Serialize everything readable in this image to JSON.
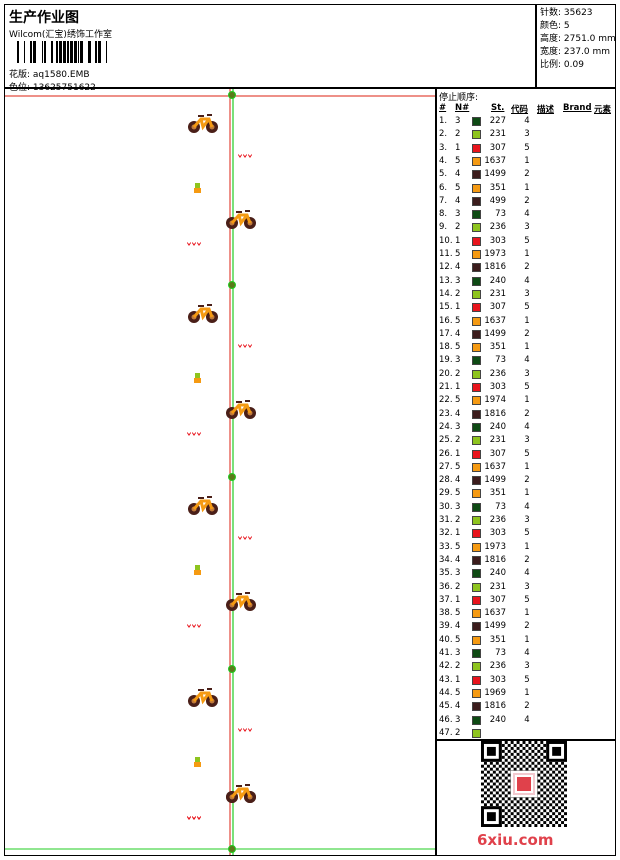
{
  "header": {
    "title": "生产作业图",
    "company": "Wilcom(汇宝)绣饰工作室",
    "pattern_label": "花版: aq1580.EMB",
    "color_label": "色位: 13625751622"
  },
  "specs": {
    "stitches": "针数: 35623",
    "colors": "颜色: 5",
    "height": "高度: 2751.0 mm",
    "width": "宽度: 237.0 mm",
    "scale": "比例: 0.09"
  },
  "stop_list": {
    "caption": "停止顺序:",
    "headers": {
      "index": "#",
      "needle": "N#",
      "stitches": "St.",
      "code": "代码",
      "desc": "描述",
      "brand": "Brand",
      "element": "元素"
    },
    "colors": {
      "1": "#e8141c",
      "2": "#8ec41e",
      "3": "#0e4a14",
      "4": "#3b1c1c",
      "5": "#f59a12"
    },
    "rows": [
      {
        "i": "1.",
        "n": "3",
        "st": "227",
        "c": "4"
      },
      {
        "i": "2.",
        "n": "2",
        "st": "231",
        "c": "3"
      },
      {
        "i": "3.",
        "n": "1",
        "st": "307",
        "c": "5"
      },
      {
        "i": "4.",
        "n": "5",
        "st": "1637",
        "c": "1"
      },
      {
        "i": "5.",
        "n": "4",
        "st": "1499",
        "c": "2"
      },
      {
        "i": "6.",
        "n": "5",
        "st": "351",
        "c": "1"
      },
      {
        "i": "7.",
        "n": "4",
        "st": "499",
        "c": "2"
      },
      {
        "i": "8.",
        "n": "3",
        "st": "73",
        "c": "4"
      },
      {
        "i": "9.",
        "n": "2",
        "st": "236",
        "c": "3"
      },
      {
        "i": "10.",
        "n": "1",
        "st": "303",
        "c": "5"
      },
      {
        "i": "11.",
        "n": "5",
        "st": "1973",
        "c": "1"
      },
      {
        "i": "12.",
        "n": "4",
        "st": "1816",
        "c": "2"
      },
      {
        "i": "13.",
        "n": "3",
        "st": "240",
        "c": "4"
      },
      {
        "i": "14.",
        "n": "2",
        "st": "231",
        "c": "3"
      },
      {
        "i": "15.",
        "n": "1",
        "st": "307",
        "c": "5"
      },
      {
        "i": "16.",
        "n": "5",
        "st": "1637",
        "c": "1"
      },
      {
        "i": "17.",
        "n": "4",
        "st": "1499",
        "c": "2"
      },
      {
        "i": "18.",
        "n": "5",
        "st": "351",
        "c": "1"
      },
      {
        "i": "19.",
        "n": "3",
        "st": "73",
        "c": "4"
      },
      {
        "i": "20.",
        "n": "2",
        "st": "236",
        "c": "3"
      },
      {
        "i": "21.",
        "n": "1",
        "st": "303",
        "c": "5"
      },
      {
        "i": "22.",
        "n": "5",
        "st": "1974",
        "c": "1"
      },
      {
        "i": "23.",
        "n": "4",
        "st": "1816",
        "c": "2"
      },
      {
        "i": "24.",
        "n": "3",
        "st": "240",
        "c": "4"
      },
      {
        "i": "25.",
        "n": "2",
        "st": "231",
        "c": "3"
      },
      {
        "i": "26.",
        "n": "1",
        "st": "307",
        "c": "5"
      },
      {
        "i": "27.",
        "n": "5",
        "st": "1637",
        "c": "1"
      },
      {
        "i": "28.",
        "n": "4",
        "st": "1499",
        "c": "2"
      },
      {
        "i": "29.",
        "n": "5",
        "st": "351",
        "c": "1"
      },
      {
        "i": "30.",
        "n": "3",
        "st": "73",
        "c": "4"
      },
      {
        "i": "31.",
        "n": "2",
        "st": "236",
        "c": "3"
      },
      {
        "i": "32.",
        "n": "1",
        "st": "303",
        "c": "5"
      },
      {
        "i": "33.",
        "n": "5",
        "st": "1973",
        "c": "1"
      },
      {
        "i": "34.",
        "n": "4",
        "st": "1816",
        "c": "2"
      },
      {
        "i": "35.",
        "n": "3",
        "st": "240",
        "c": "4"
      },
      {
        "i": "36.",
        "n": "2",
        "st": "231",
        "c": "3"
      },
      {
        "i": "37.",
        "n": "1",
        "st": "307",
        "c": "5"
      },
      {
        "i": "38.",
        "n": "5",
        "st": "1637",
        "c": "1"
      },
      {
        "i": "39.",
        "n": "4",
        "st": "1499",
        "c": "2"
      },
      {
        "i": "40.",
        "n": "5",
        "st": "351",
        "c": "1"
      },
      {
        "i": "41.",
        "n": "3",
        "st": "73",
        "c": "4"
      },
      {
        "i": "42.",
        "n": "2",
        "st": "236",
        "c": "3"
      },
      {
        "i": "43.",
        "n": "1",
        "st": "303",
        "c": "5"
      },
      {
        "i": "44.",
        "n": "5",
        "st": "1969",
        "c": "1"
      },
      {
        "i": "45.",
        "n": "4",
        "st": "1816",
        "c": "2"
      },
      {
        "i": "46.",
        "n": "3",
        "st": "240",
        "c": "4"
      },
      {
        "i": "47.",
        "n": "2",
        "st": "",
        "c": ""
      }
    ]
  },
  "watermark": "6xiu.com"
}
